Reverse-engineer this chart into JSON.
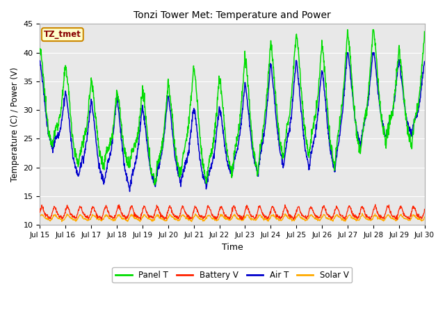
{
  "title": "Tonzi Tower Met: Temperature and Power",
  "xlabel": "Time",
  "ylabel": "Temperature (C) / Power (V)",
  "xlim": [
    0,
    15
  ],
  "ylim": [
    10,
    45
  ],
  "yticks": [
    10,
    15,
    20,
    25,
    30,
    35,
    40,
    45
  ],
  "xtick_labels": [
    "Jul 15",
    "Jul 16",
    "Jul 17",
    "Jul 18",
    "Jul 19",
    "Jul 20",
    "Jul 21",
    "Jul 22",
    "Jul 23",
    "Jul 24",
    "Jul 25",
    "Jul 26",
    "Jul 27",
    "Jul 28",
    "Jul 29",
    "Jul 30"
  ],
  "fig_facecolor": "#ffffff",
  "plot_bg": "#e8e8e8",
  "grid_color": "#ffffff",
  "legend_labels": [
    "Panel T",
    "Battery V",
    "Air T",
    "Solar V"
  ],
  "legend_colors": [
    "#00dd00",
    "#ff2200",
    "#0000cc",
    "#ffaa00"
  ],
  "annotation_text": "TZ_tmet",
  "annotation_bg": "#ffffcc",
  "annotation_border": "#cc8800",
  "annotation_text_color": "#880000",
  "panel_t_color": "#00dd00",
  "battery_v_color": "#ff2200",
  "air_t_color": "#0000cc",
  "solar_v_color": "#ffaa00",
  "panel_peaks": [
    39.5,
    22.5,
    36.5,
    19.0,
    34.0,
    19.0,
    32.0,
    19.0,
    32.0,
    16.0,
    33.5,
    17.5,
    36.5,
    16.0,
    34.5,
    17.5,
    38.0,
    17.5,
    40.7,
    20.0,
    42.5,
    20.5,
    40.5,
    18.5,
    42.8,
    21.0,
    43.0,
    22.5,
    39.5,
    22.5,
    41.8
  ],
  "air_peaks": [
    37.5,
    22.0,
    32.0,
    17.0,
    30.5,
    16.0,
    31.0,
    15.0,
    29.5,
    15.5,
    31.5,
    16.0,
    29.5,
    15.5,
    29.5,
    17.5,
    33.5,
    17.5,
    37.0,
    19.0,
    37.5,
    18.5,
    36.0,
    18.0,
    39.5,
    22.5,
    39.5,
    24.0,
    37.5,
    24.5,
    37.5
  ],
  "battery_mean": 12.0,
  "battery_amp": 0.9,
  "solar_mean": 11.2,
  "solar_amp": 0.4
}
